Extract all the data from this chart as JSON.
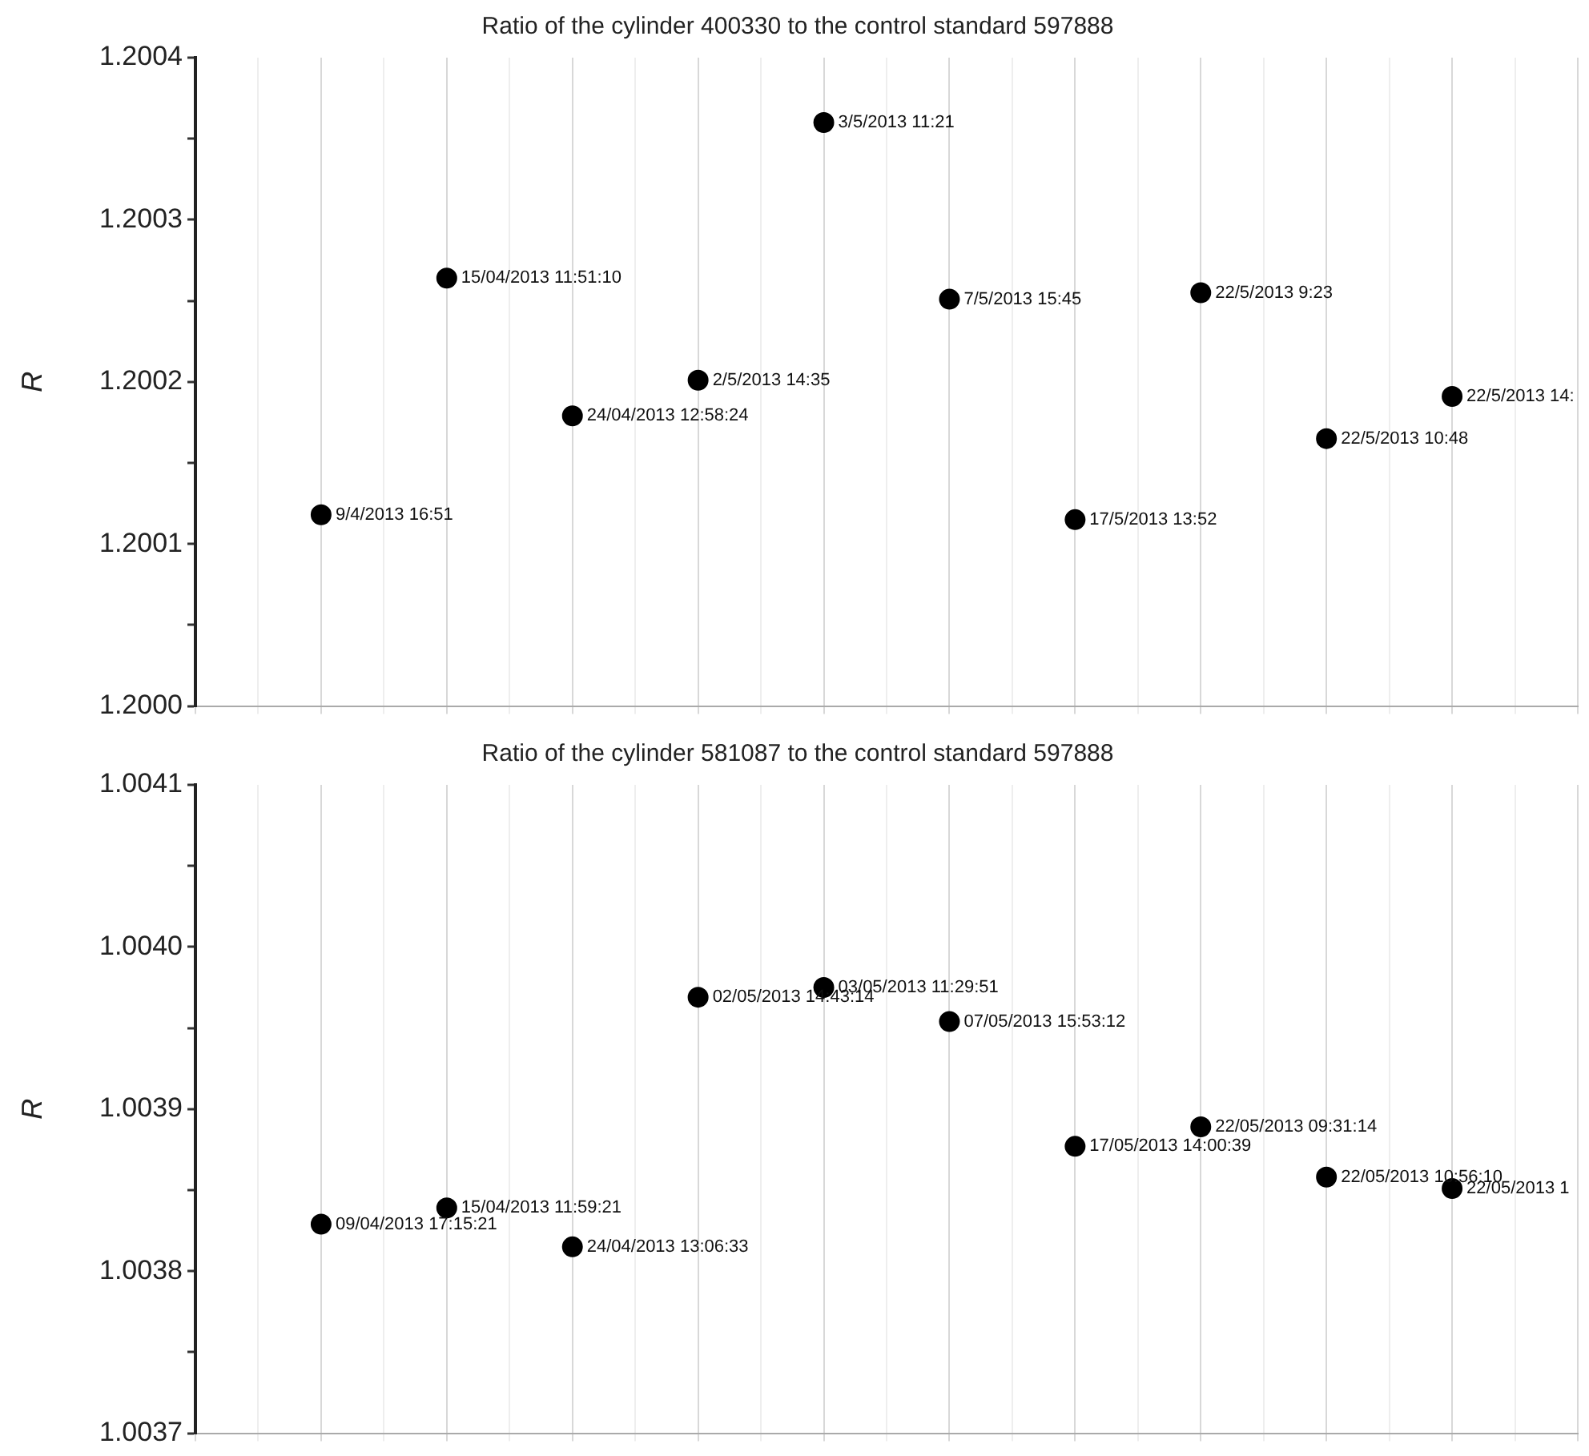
{
  "chart_data": [
    {
      "type": "scatter",
      "title": "Ratio of the cylinder 400330 to the control standard 597888",
      "ylabel": "R",
      "categories": [
        null,
        null,
        null,
        null,
        null,
        null,
        null,
        null,
        null,
        null
      ],
      "series": [
        {
          "color": "#000000",
          "values": [
            1.200118,
            1.200264,
            1.200179,
            1.200201,
            1.20036,
            1.200251,
            1.200115,
            1.200255,
            1.200165,
            1.200191
          ],
          "value_labels": [
            "9/4/2013 16:51",
            "15/04/2013 11:51:10",
            "24/04/2013 12:58:24",
            "2/5/2013 14:35",
            "3/5/2013 11:21",
            "7/5/2013 15:45",
            "17/5/2013 13:52",
            "22/5/2013 9:23",
            "22/5/2013 10:48",
            "22/5/2013 14:"
          ]
        }
      ],
      "ylim": [
        1.2,
        1.2004
      ],
      "yticks": [
        {
          "value": 1.2,
          "label": "1.2000"
        },
        {
          "value": 1.20005,
          "label": null
        },
        {
          "value": 1.2001,
          "label": "1.2001"
        },
        {
          "value": 1.20015,
          "label": null
        },
        {
          "value": 1.2002,
          "label": "1.2002"
        },
        {
          "value": 1.20025,
          "label": null
        },
        {
          "value": 1.2003,
          "label": "1.2003"
        },
        {
          "value": 1.20035,
          "label": null
        },
        {
          "value": 1.2004,
          "label": "1.2004"
        }
      ],
      "grid": "x",
      "tick_labels": "y",
      "marker": "circle"
    },
    {
      "type": "scatter",
      "title": "Ratio of the cylinder 581087 to the control standard 597888",
      "ylabel": "R",
      "categories": [
        null,
        null,
        null,
        null,
        null,
        null,
        null,
        null,
        null,
        null
      ],
      "series": [
        {
          "color": "#000000",
          "values": [
            1.003829,
            1.003839,
            1.003815,
            1.003969,
            1.003975,
            1.003954,
            1.003877,
            1.003889,
            1.003858,
            1.003851
          ],
          "value_labels": [
            "09/04/2013 17:15:21",
            "15/04/2013 11:59:21",
            "24/04/2013 13:06:33",
            "02/05/2013 14:43:14",
            "03/05/2013 11:29:51",
            "07/05/2013 15:53:12",
            "17/05/2013 14:00:39",
            "22/05/2013 09:31:14",
            "22/05/2013 10:56:10",
            "22/05/2013 1"
          ]
        }
      ],
      "ylim": [
        1.0037,
        1.0041
      ],
      "yticks": [
        {
          "value": 1.0037,
          "label": "1.0037"
        },
        {
          "value": 1.00375,
          "label": null
        },
        {
          "value": 1.0038,
          "label": "1.0038"
        },
        {
          "value": 1.00385,
          "label": null
        },
        {
          "value": 1.0039,
          "label": "1.0039"
        },
        {
          "value": 1.00395,
          "label": null
        },
        {
          "value": 1.004,
          "label": "1.0040"
        },
        {
          "value": 1.00405,
          "label": null
        },
        {
          "value": 1.0041,
          "label": "1.0041"
        }
      ],
      "grid": "x",
      "tick_labels": "y",
      "marker": "circle"
    }
  ]
}
